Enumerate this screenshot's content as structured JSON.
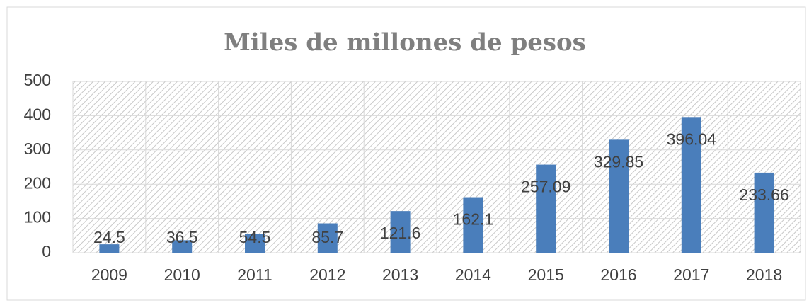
{
  "chart_data": {
    "type": "bar",
    "title": "Miles de millones de pesos",
    "categories": [
      "2009",
      "2010",
      "2011",
      "2012",
      "2013",
      "2014",
      "2015",
      "2016",
      "2017",
      "2018"
    ],
    "values": [
      24.5,
      36.5,
      54.5,
      85.7,
      121.6,
      162.1,
      257.09,
      329.85,
      396.04,
      233.66
    ],
    "color": "#4a7ebb",
    "ylim": [
      0,
      500
    ],
    "yticks": [
      0,
      100,
      200,
      300,
      400,
      500
    ],
    "grid": true,
    "data_labels": true
  }
}
